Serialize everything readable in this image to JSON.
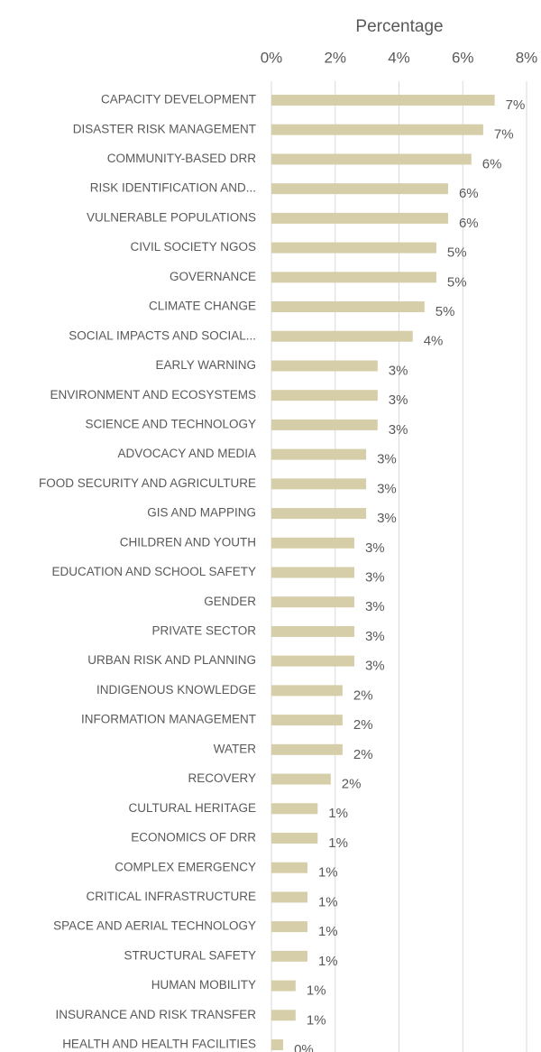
{
  "chart_data": {
    "type": "barh",
    "x_label": "Percentage",
    "categories": [
      "CAPACITY DEVELOPMENT",
      "DISASTER RISK MANAGEMENT",
      "COMMUNITY-BASED DRR",
      "RISK IDENTIFICATION AND...",
      "VULNERABLE POPULATIONS",
      "CIVIL SOCIETY NGOS",
      "GOVERNANCE",
      "CLIMATE CHANGE",
      "SOCIAL IMPACTS AND SOCIAL...",
      "EARLY WARNING",
      "ENVIRONMENT AND ECOSYSTEMS",
      "SCIENCE AND TECHNOLOGY",
      "ADVOCACY AND MEDIA",
      "FOOD SECURITY AND AGRICULTURE",
      "GIS AND MAPPING",
      "CHILDREN AND YOUTH",
      "EDUCATION AND SCHOOL SAFETY",
      "GENDER",
      "PRIVATE SECTOR",
      "URBAN RISK AND PLANNING",
      "INDIGENOUS KNOWLEDGE",
      "INFORMATION MANAGEMENT",
      "WATER",
      "RECOVERY",
      "CULTURAL HERITAGE",
      "ECONOMICS OF DRR",
      "COMPLEX EMERGENCY",
      "CRITICAL INFRASTRUCTURE",
      "SPACE AND AERIAL TECHNOLOGY",
      "STRUCTURAL SAFETY",
      "HUMAN MOBILITY",
      "INSURANCE AND RISK TRANSFER",
      "HEALTH AND HEALTH FACILITIES"
    ],
    "values": [
      7.0,
      6.64,
      6.27,
      5.54,
      5.54,
      5.17,
      5.17,
      4.8,
      4.43,
      3.33,
      3.33,
      3.33,
      2.97,
      2.97,
      2.97,
      2.6,
      2.6,
      2.6,
      2.6,
      2.6,
      2.23,
      2.23,
      2.23,
      1.86,
      1.45,
      1.45,
      1.13,
      1.13,
      1.13,
      1.13,
      0.76,
      0.76,
      0.37
    ],
    "value_labels": [
      "7%",
      "7%",
      "6%",
      "6%",
      "6%",
      "5%",
      "5%",
      "5%",
      "4%",
      "3%",
      "3%",
      "3%",
      "3%",
      "3%",
      "3%",
      "3%",
      "3%",
      "3%",
      "3%",
      "3%",
      "2%",
      "2%",
      "2%",
      "2%",
      "1%",
      "1%",
      "1%",
      "1%",
      "1%",
      "1%",
      "1%",
      "1%",
      "0%"
    ],
    "color": "#d6cea8",
    "xlim": [
      0,
      8
    ],
    "xticks": [
      {
        "value": 0,
        "label": "0%"
      },
      {
        "value": 2,
        "label": "2%"
      },
      {
        "value": 4,
        "label": "4%"
      },
      {
        "value": 6,
        "label": "6%"
      },
      {
        "value": 8,
        "label": "8%"
      }
    ],
    "grid": true
  }
}
